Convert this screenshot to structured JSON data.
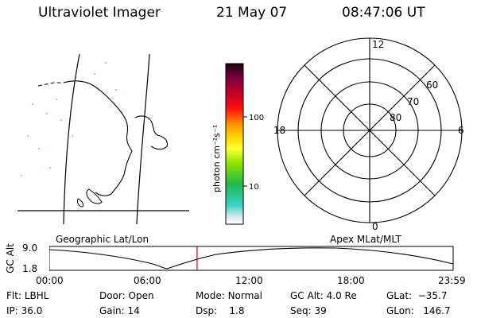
{
  "header": {
    "instrument": "Ultraviolet Imager",
    "date": "21 May 07",
    "time": "08:47:06 UT"
  },
  "colorbar": {
    "unit_label": "photon cm⁻²s⁻¹",
    "ticks": [
      "100",
      "10"
    ]
  },
  "polar": {
    "mlt_labels": {
      "top": "12",
      "left": "18",
      "right": "6",
      "bottom": "0"
    },
    "lat_labels": [
      "60",
      "70",
      "80"
    ]
  },
  "panels": {
    "left_caption": "Geographic Lat/Lon",
    "right_caption": "Apex MLat/MLT"
  },
  "altplot": {
    "ylabel": "GC Alt",
    "y_ticks": [
      "9.0",
      "1.8"
    ],
    "x_ticks": [
      "00:00",
      "06:00",
      "12:00",
      "18:00",
      "23:59"
    ],
    "marker_time": "08:47:06"
  },
  "info": {
    "row1": [
      {
        "key": "Flt:",
        "value": "LBHL"
      },
      {
        "key": "Door:",
        "value": "Open"
      },
      {
        "key": "Mode:",
        "value": "Normal"
      },
      {
        "key": "GC Alt:",
        "value": "4.0 Re"
      },
      {
        "key": "GLat:",
        "value": "−35.7"
      }
    ],
    "row2": [
      {
        "key": "IP:",
        "value": "36.0"
      },
      {
        "key": "Gain:",
        "value": "14"
      },
      {
        "key": "Dsp:",
        "value": "1.8"
      },
      {
        "key": "Seq:",
        "value": "39"
      },
      {
        "key": "GLon:",
        "value": "146.7"
      }
    ]
  },
  "colors": {
    "marker": "#cc0000",
    "speckle": "#8fd6d6"
  }
}
